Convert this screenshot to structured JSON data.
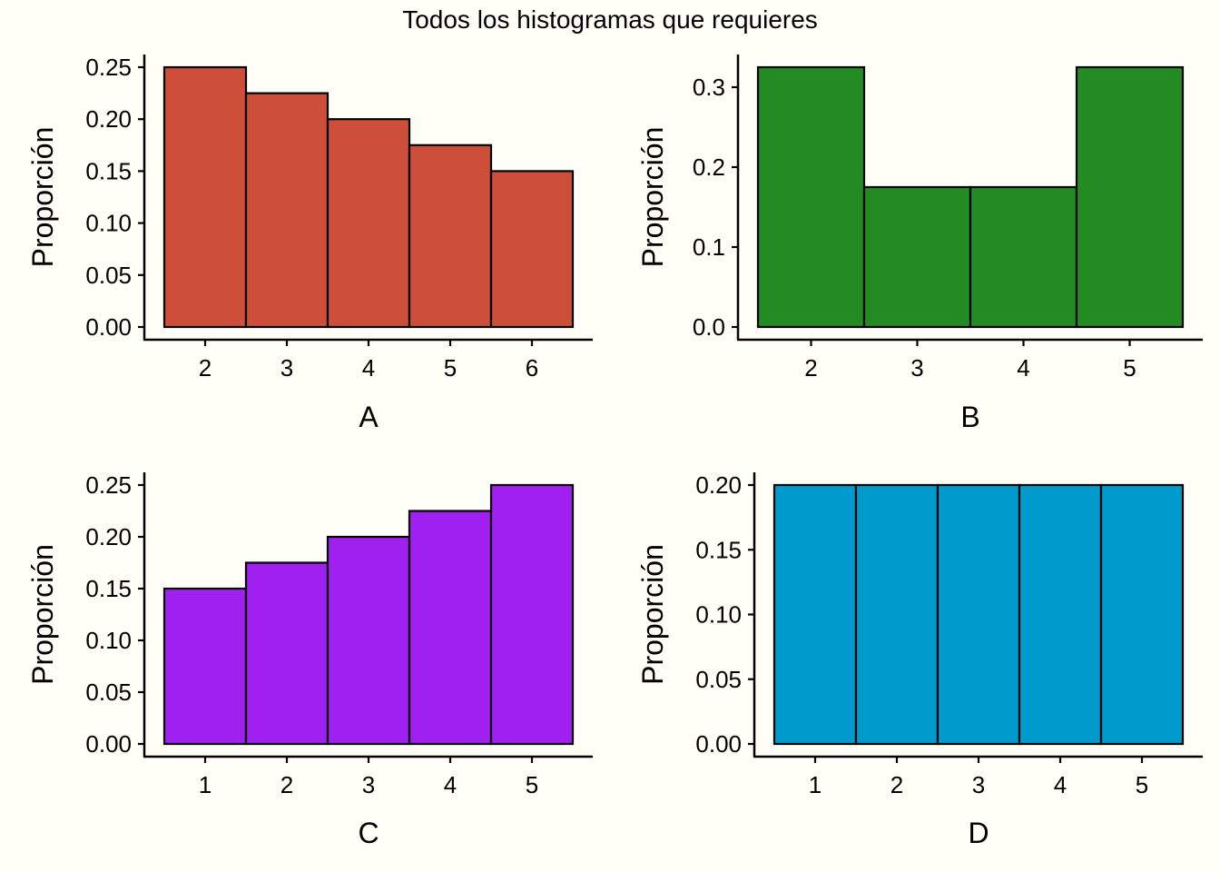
{
  "figure": {
    "title": "Todos los histogramas que requieres",
    "background": "#FFFFF8"
  },
  "chart_data": [
    {
      "type": "bar",
      "panel": "A",
      "xlabel": "A",
      "ylabel": "Proporción",
      "categories": [
        "2",
        "3",
        "4",
        "5",
        "6"
      ],
      "values": [
        0.25,
        0.225,
        0.2,
        0.175,
        0.15
      ],
      "ylim": [
        0,
        0.25
      ],
      "yticks": [
        "0.00",
        "0.05",
        "0.10",
        "0.15",
        "0.20",
        "0.25"
      ],
      "ytick_values": [
        0,
        0.05,
        0.1,
        0.15,
        0.2,
        0.25
      ],
      "xlim": [
        1.5,
        6.5
      ],
      "fill": "#CD4F39",
      "grid": false,
      "legend": "none"
    },
    {
      "type": "bar",
      "panel": "B",
      "xlabel": "B",
      "ylabel": "Proporción",
      "categories": [
        "2",
        "3",
        "4",
        "5"
      ],
      "values": [
        0.325,
        0.175,
        0.175,
        0.325
      ],
      "ylim": [
        0,
        0.325
      ],
      "yticks": [
        "0.0",
        "0.1",
        "0.2",
        "0.3"
      ],
      "ytick_values": [
        0,
        0.1,
        0.2,
        0.3
      ],
      "xlim": [
        1.5,
        5.5
      ],
      "fill": "#228B22",
      "grid": false,
      "legend": "none"
    },
    {
      "type": "bar",
      "panel": "C",
      "xlabel": "C",
      "ylabel": "Proporción",
      "categories": [
        "1",
        "2",
        "3",
        "4",
        "5"
      ],
      "values": [
        0.15,
        0.175,
        0.2,
        0.225,
        0.25
      ],
      "ylim": [
        0,
        0.25
      ],
      "yticks": [
        "0.00",
        "0.05",
        "0.10",
        "0.15",
        "0.20",
        "0.25"
      ],
      "ytick_values": [
        0,
        0.05,
        0.1,
        0.15,
        0.2,
        0.25
      ],
      "xlim": [
        0.5,
        5.5
      ],
      "fill": "#A020F0",
      "grid": false,
      "legend": "none"
    },
    {
      "type": "bar",
      "panel": "D",
      "xlabel": "D",
      "ylabel": "Proporción",
      "categories": [
        "1",
        "2",
        "3",
        "4",
        "5"
      ],
      "values": [
        0.2,
        0.2,
        0.2,
        0.2,
        0.2
      ],
      "ylim": [
        0,
        0.2
      ],
      "yticks": [
        "0.00",
        "0.05",
        "0.10",
        "0.15",
        "0.20"
      ],
      "ytick_values": [
        0,
        0.05,
        0.1,
        0.15,
        0.2
      ],
      "xlim": [
        0.5,
        5.5
      ],
      "fill": "#009ACD",
      "grid": false,
      "legend": "none"
    }
  ]
}
